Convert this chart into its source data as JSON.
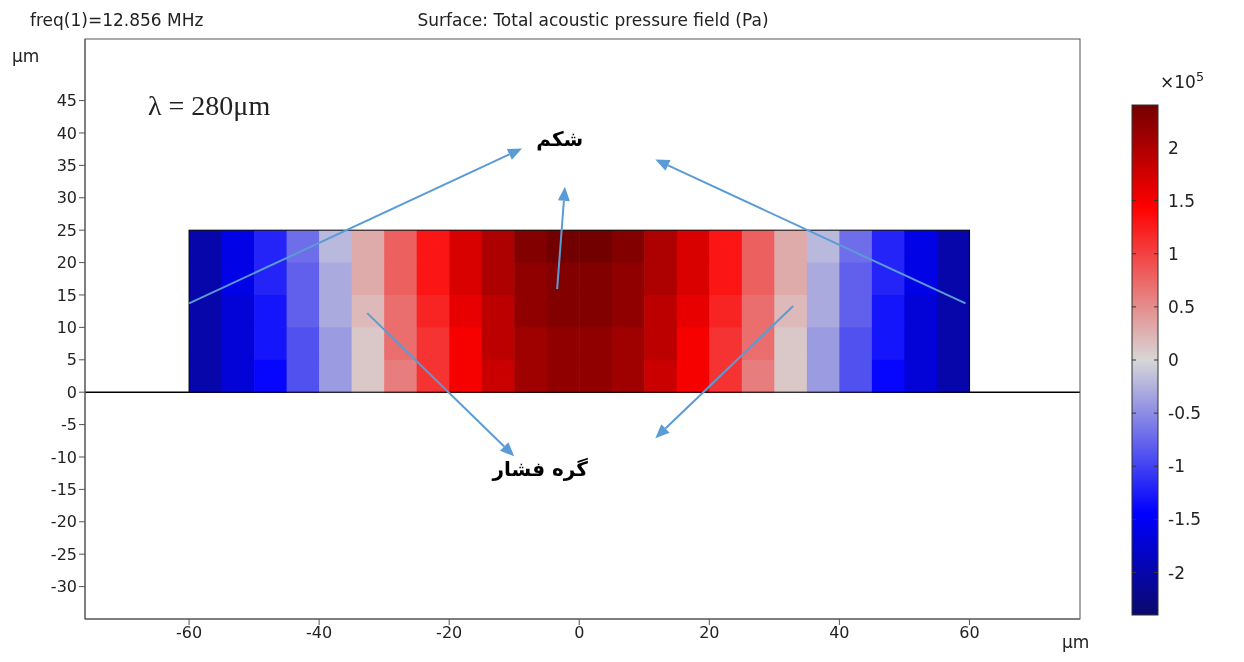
{
  "chart_data": {
    "type": "heatmap",
    "title": "Surface: Total acoustic pressure field (Pa)",
    "annotations": [
      "freq(1)=12.856 MHz",
      "λ = 280μm",
      "شکم",
      "گره فشار"
    ],
    "xlabel": "μm",
    "ylabel": "μm",
    "clabel": "×10$^{5}$",
    "x": [
      -57.5,
      -52.5,
      -47.5,
      -42.5,
      -37.5,
      -32.5,
      -27.5,
      -22.5,
      -17.5,
      -12.5,
      -7.5,
      -2.5,
      2.5,
      7.5,
      12.5,
      17.5,
      22.5,
      27.5,
      32.5,
      37.5,
      42.5,
      47.5,
      52.5,
      57.5
    ],
    "y": [
      22.5,
      17.5,
      12.5,
      7.5,
      2.5
    ],
    "cells": [
      [
        -2.0,
        -1.6,
        -1.2,
        -0.7,
        -0.2,
        0.3,
        0.8,
        1.3,
        1.7,
        2.0,
        2.3,
        2.4,
        2.4,
        2.3,
        2.0,
        1.7,
        1.3,
        0.8,
        0.3,
        -0.2,
        -0.7,
        -1.2,
        -1.6,
        -2.0
      ],
      [
        -2.0,
        -1.6,
        -1.2,
        -0.8,
        -0.3,
        0.3,
        0.8,
        1.3,
        1.7,
        2.0,
        2.2,
        2.3,
        2.3,
        2.2,
        2.0,
        1.7,
        1.3,
        0.8,
        0.3,
        -0.3,
        -0.8,
        -1.2,
        -1.6,
        -2.0
      ],
      [
        -2.0,
        -1.7,
        -1.3,
        -0.8,
        -0.3,
        0.2,
        0.7,
        1.2,
        1.6,
        1.9,
        2.2,
        2.3,
        2.3,
        2.2,
        1.9,
        1.6,
        1.2,
        0.7,
        0.2,
        -0.3,
        -0.8,
        -1.3,
        -1.7,
        -2.0
      ],
      [
        -2.0,
        -1.7,
        -1.3,
        -0.9,
        -0.4,
        0.1,
        0.7,
        1.1,
        1.5,
        1.9,
        2.1,
        2.2,
        2.2,
        2.1,
        1.9,
        1.5,
        1.1,
        0.7,
        0.1,
        -0.4,
        -0.9,
        -1.3,
        -1.7,
        -2.0
      ],
      [
        -2.0,
        -1.7,
        -1.4,
        -0.9,
        -0.4,
        0.1,
        0.6,
        1.1,
        1.5,
        1.8,
        2.1,
        2.2,
        2.2,
        2.1,
        1.8,
        1.5,
        1.1,
        0.6,
        0.1,
        -0.4,
        -0.9,
        -1.4,
        -1.7,
        -2.0
      ]
    ],
    "clim": [
      -2.4,
      2.4
    ],
    "cticks": [
      -2,
      -1.5,
      -1,
      -0.5,
      0,
      0.5,
      1,
      1.5,
      2
    ],
    "xlim": [
      -76,
      77
    ],
    "xticks": [
      -60,
      -40,
      -20,
      0,
      20,
      40,
      60
    ],
    "ylim": [
      -35,
      54.5
    ],
    "yticks": [
      -30,
      -25,
      -20,
      -15,
      -10,
      -5,
      0,
      5,
      10,
      15,
      20,
      25,
      30,
      35,
      40,
      45
    ],
    "ref_lines": [
      {
        "axis": "y",
        "value": 0,
        "color": "#000000"
      }
    ]
  }
}
